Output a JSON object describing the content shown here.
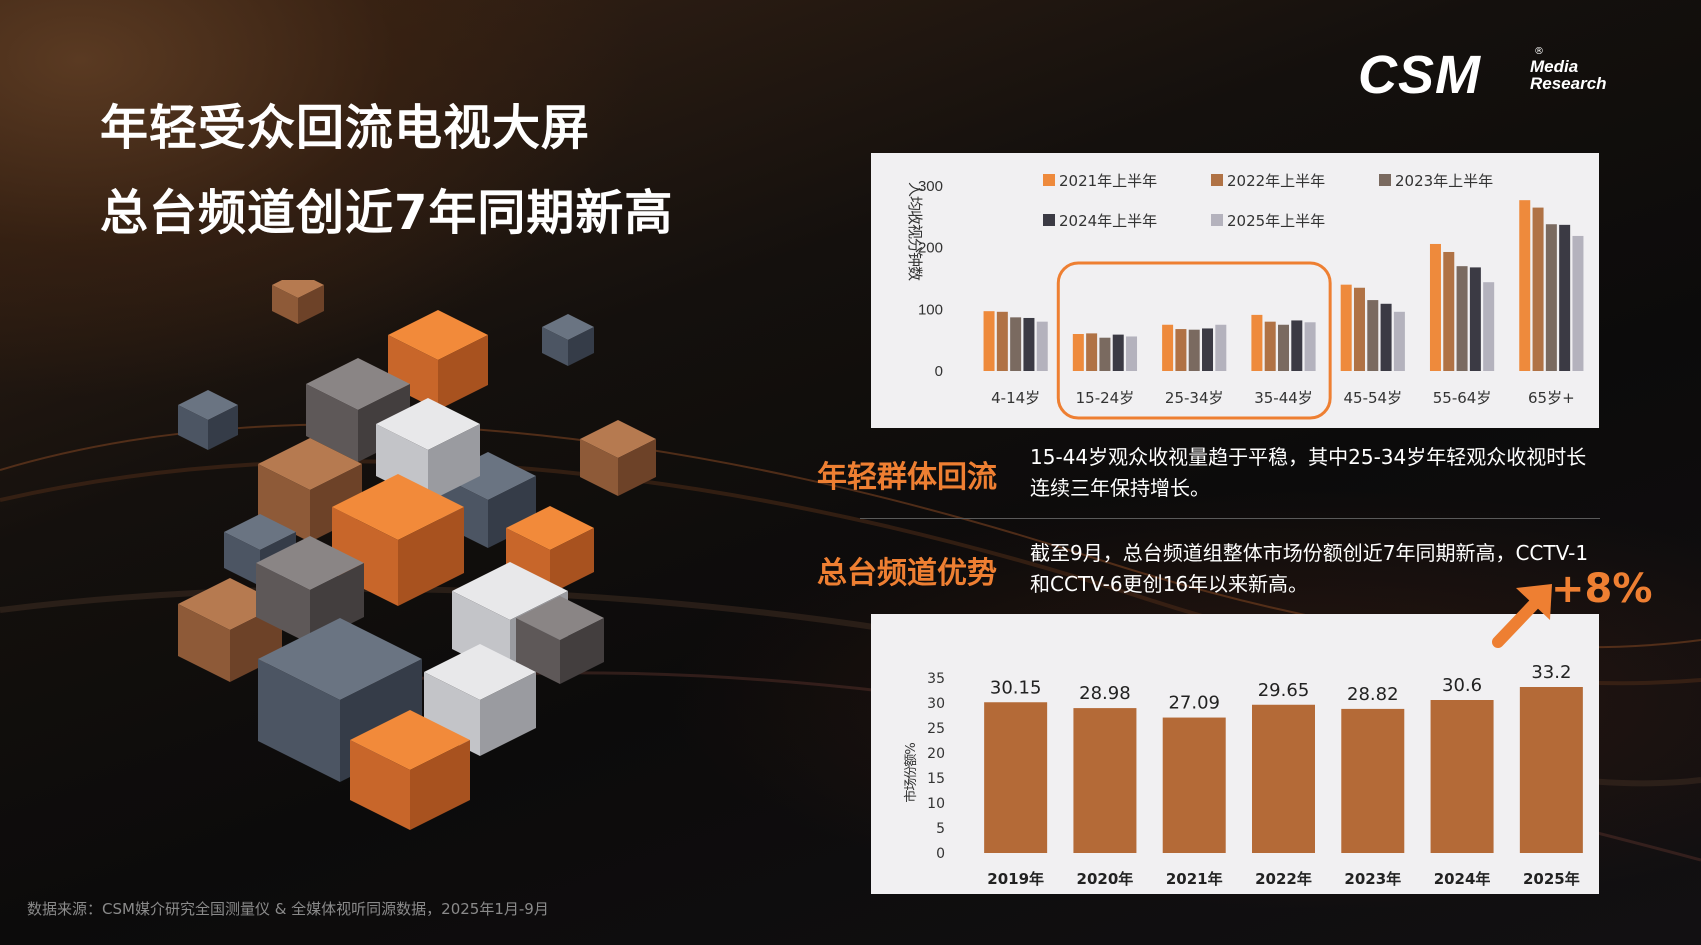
{
  "title": {
    "line1": "年轻受众回流电视大屏",
    "line2": "总台频道创近7年同期新高"
  },
  "logo": {
    "main": "CSM",
    "sub1": "Media",
    "sub2": "Research",
    "registered": "®"
  },
  "sections": [
    {
      "label": "年轻群体回流",
      "text": "15-44岁观众收视量趋于平稳，其中25-34岁年轻观众收视时长连续三年保持增长。"
    },
    {
      "label": "总台频道优势",
      "text": "截至9月，总台频道组整体市场份额创近7年同期新高，CCTV-1和CCTV-6更创16年以来新高。"
    }
  ],
  "growth_badge": "+8%",
  "source": "数据来源：CSM媒介研究全国测量仪 & 全媒体视听同源数据，2025年1月-9月",
  "colors": {
    "accent": "#ee7f32",
    "panel_bg": "#f1f0f2",
    "bar2": "#b46a37"
  },
  "chart_data": [
    {
      "type": "bar",
      "categories": [
        "4-14岁",
        "15-24岁",
        "25-34岁",
        "35-44岁",
        "45-54岁",
        "55-64岁",
        "65岁+"
      ],
      "ylabel": "人均收视分钟数",
      "ylim": [
        0,
        300
      ],
      "yticks": [
        0,
        100,
        200,
        300
      ],
      "legend_position": "top",
      "highlight": [
        "15-24岁",
        "25-34岁",
        "35-44岁"
      ],
      "series": [
        {
          "name": "2021年上半年",
          "color": "#ee8a3c",
          "values": [
            97,
            60,
            75,
            91,
            140,
            206,
            277
          ]
        },
        {
          "name": "2022年上半年",
          "color": "#b07245",
          "values": [
            96,
            61,
            68,
            80,
            135,
            193,
            265
          ]
        },
        {
          "name": "2023年上半年",
          "color": "#7a6a60",
          "values": [
            87,
            54,
            67,
            75,
            115,
            170,
            238
          ]
        },
        {
          "name": "2024年上半年",
          "color": "#3b3a44",
          "values": [
            86,
            59,
            69,
            82,
            109,
            168,
            237
          ]
        },
        {
          "name": "2025年上半年",
          "color": "#b4b2bd",
          "values": [
            80,
            56,
            75,
            79,
            96,
            144,
            219
          ]
        }
      ]
    },
    {
      "type": "bar",
      "categories": [
        "2019年",
        "2020年",
        "2021年",
        "2022年",
        "2023年",
        "2024年",
        "2025年"
      ],
      "values": [
        30.15,
        28.98,
        27.09,
        29.65,
        28.82,
        30.6,
        33.2
      ],
      "value_labels": [
        "30.15",
        "28.98",
        "27.09",
        "29.65",
        "28.82",
        "30.6",
        "33.2"
      ],
      "ylabel": "市场份额%",
      "ylim": [
        0,
        35
      ],
      "yticks": [
        0,
        5,
        10,
        15,
        20,
        25,
        30,
        35
      ],
      "color": "#b46a37"
    }
  ]
}
